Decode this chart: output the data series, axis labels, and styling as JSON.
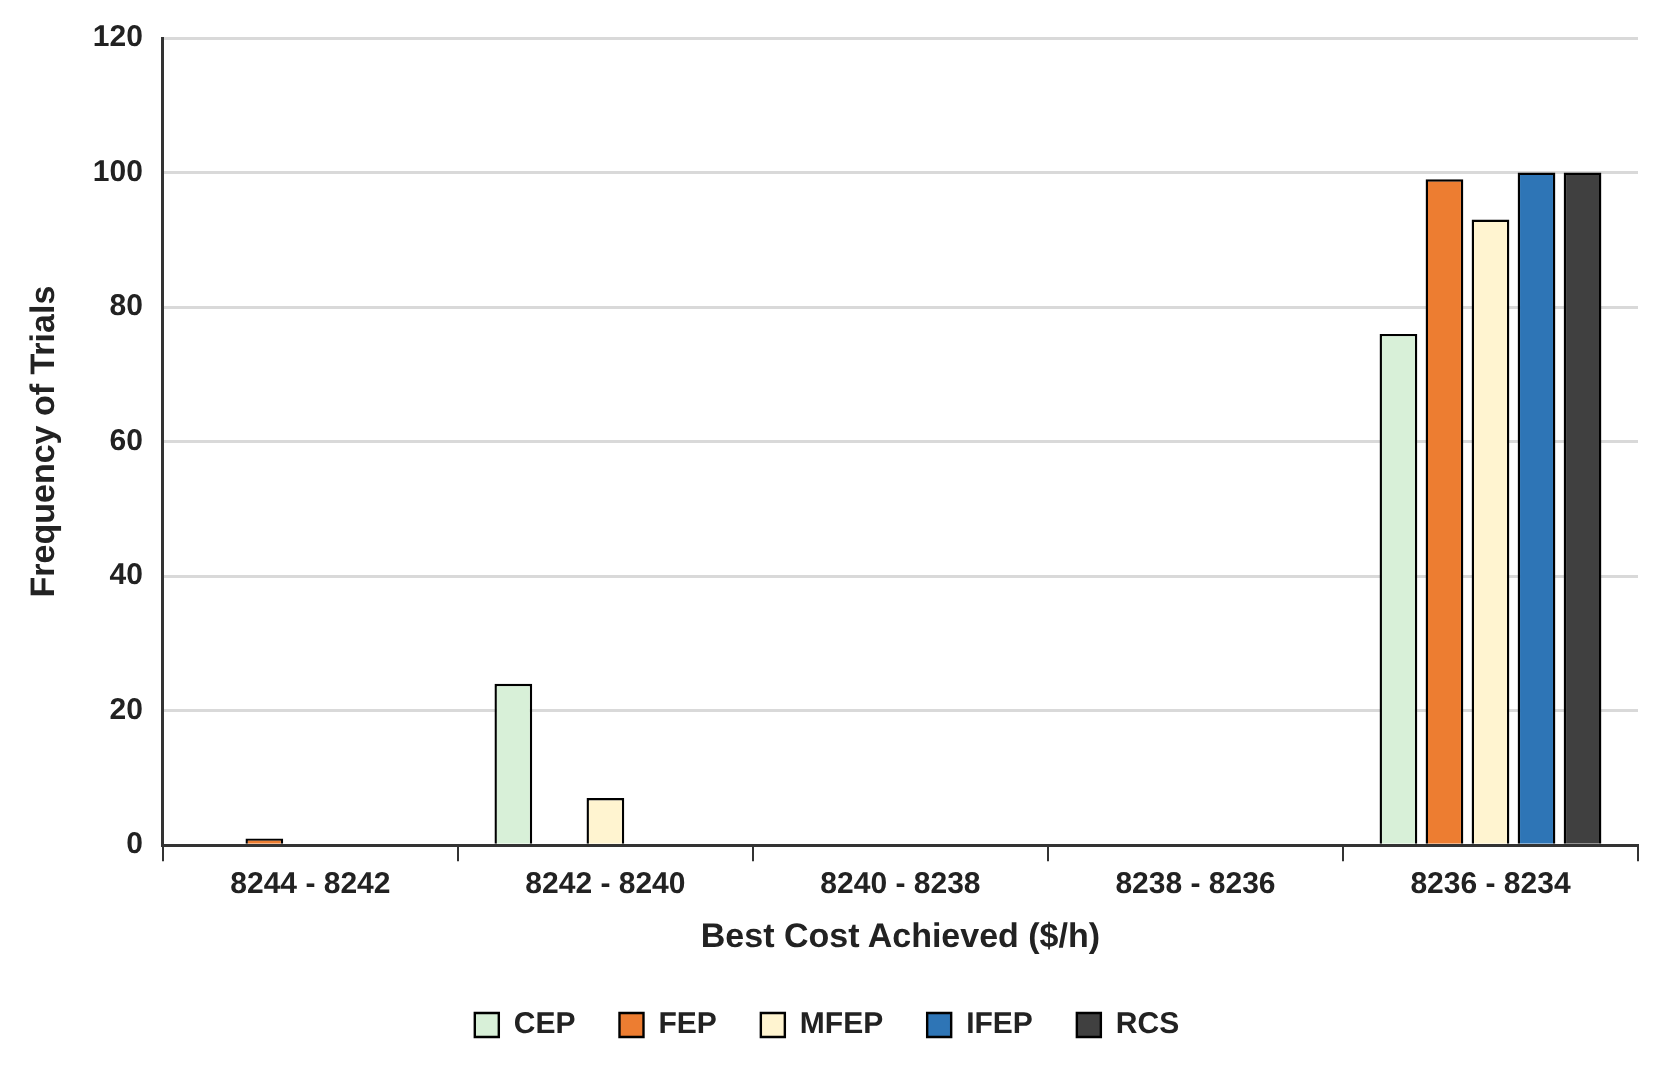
{
  "chart_data": {
    "type": "bar",
    "xlabel": "Best Cost Achieved ($/h)",
    "ylabel": "Frequency of Trials",
    "categories": [
      "8244 - 8242",
      "8242 - 8240",
      "8240 - 8238",
      "8238 - 8236",
      "8236 - 8234"
    ],
    "series": [
      {
        "name": "CEP",
        "color": "#d8f0d8",
        "values": [
          0,
          24,
          0,
          0,
          76
        ]
      },
      {
        "name": "FEP",
        "color": "#ed7d31",
        "values": [
          1,
          0,
          0,
          0,
          99
        ]
      },
      {
        "name": "MFEP",
        "color": "#fff4d0",
        "values": [
          0,
          7,
          0,
          0,
          93
        ]
      },
      {
        "name": "IFEP",
        "color": "#2e75b6",
        "values": [
          0,
          0,
          0,
          0,
          100
        ]
      },
      {
        "name": "RCS",
        "color": "#404040",
        "values": [
          0,
          0,
          0,
          0,
          100
        ]
      }
    ],
    "ylim": [
      0,
      120
    ],
    "yticks": [
      0,
      20,
      40,
      60,
      80,
      100,
      120
    ],
    "grid": "y",
    "legend": "bottom"
  }
}
